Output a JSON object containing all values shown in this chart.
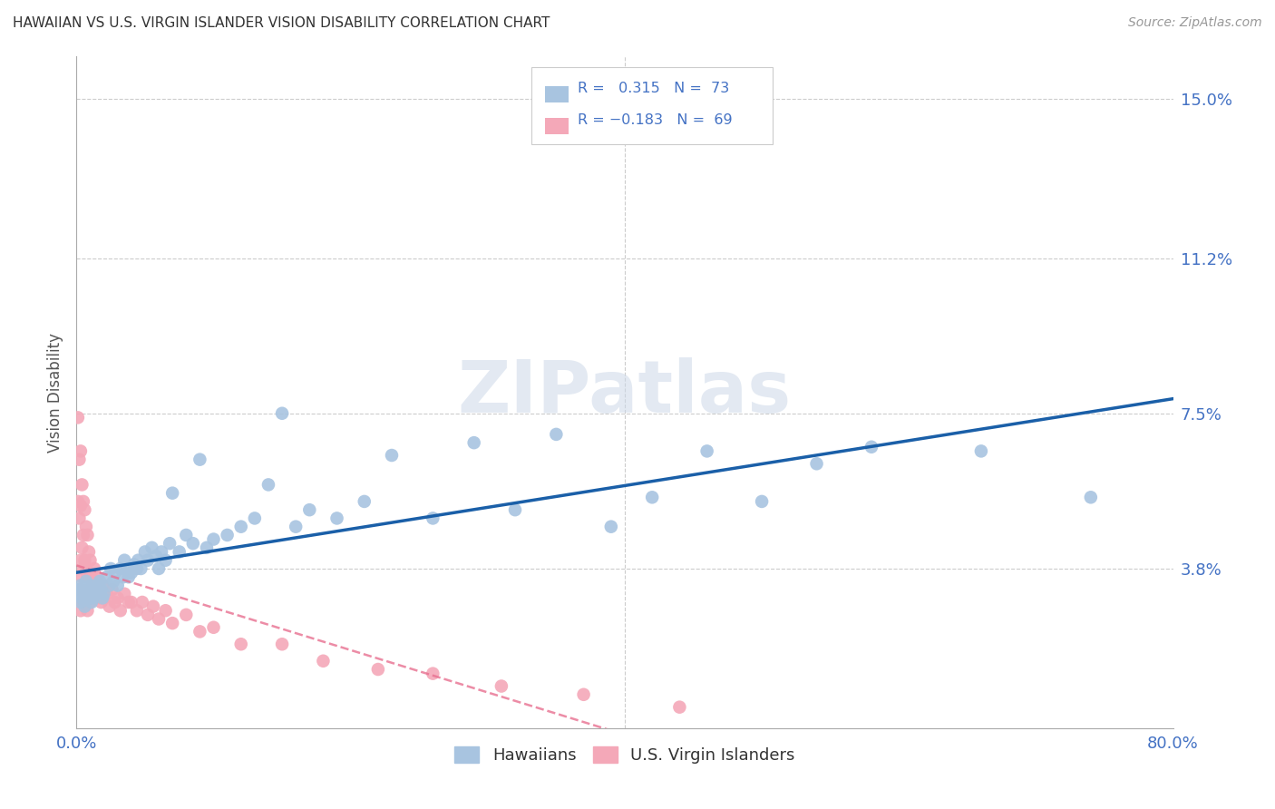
{
  "title": "HAWAIIAN VS U.S. VIRGIN ISLANDER VISION DISABILITY CORRELATION CHART",
  "source": "Source: ZipAtlas.com",
  "ylabel": "Vision Disability",
  "xlim": [
    0.0,
    0.8
  ],
  "ylim": [
    0.0,
    0.16
  ],
  "ytick_positions": [
    0.038,
    0.075,
    0.112,
    0.15
  ],
  "ytick_labels": [
    "3.8%",
    "7.5%",
    "11.2%",
    "15.0%"
  ],
  "xtick_positions": [
    0.0,
    0.1,
    0.2,
    0.3,
    0.4,
    0.5,
    0.6,
    0.7,
    0.8
  ],
  "xtick_labels": [
    "0.0%",
    "",
    "",
    "",
    "",
    "",
    "",
    "",
    "80.0%"
  ],
  "grid_color": "#cccccc",
  "background_color": "#ffffff",
  "hawaiian_color": "#a8c4e0",
  "usvi_color": "#f4a8b8",
  "hawaiian_line_color": "#1a5fa8",
  "usvi_line_color": "#e87090",
  "R_hawaiian": 0.315,
  "N_hawaiian": 73,
  "R_usvi": -0.183,
  "N_usvi": 69,
  "legend_labels": [
    "Hawaiians",
    "U.S. Virgin Islanders"
  ],
  "watermark": "ZIPatlas",
  "hawaiian_x": [
    0.001,
    0.002,
    0.003,
    0.003,
    0.004,
    0.005,
    0.006,
    0.007,
    0.008,
    0.009,
    0.01,
    0.011,
    0.012,
    0.013,
    0.015,
    0.016,
    0.017,
    0.018,
    0.019,
    0.02,
    0.022,
    0.024,
    0.025,
    0.027,
    0.028,
    0.03,
    0.032,
    0.034,
    0.035,
    0.037,
    0.038,
    0.04,
    0.042,
    0.044,
    0.045,
    0.047,
    0.05,
    0.052,
    0.055,
    0.058,
    0.06,
    0.062,
    0.065,
    0.068,
    0.07,
    0.075,
    0.08,
    0.085,
    0.09,
    0.095,
    0.1,
    0.11,
    0.12,
    0.13,
    0.14,
    0.15,
    0.16,
    0.17,
    0.19,
    0.21,
    0.23,
    0.26,
    0.29,
    0.32,
    0.35,
    0.39,
    0.42,
    0.46,
    0.5,
    0.54,
    0.58,
    0.66,
    0.74
  ],
  "hawaiian_y": [
    0.033,
    0.032,
    0.03,
    0.034,
    0.031,
    0.033,
    0.029,
    0.035,
    0.031,
    0.032,
    0.034,
    0.03,
    0.031,
    0.033,
    0.032,
    0.034,
    0.035,
    0.033,
    0.031,
    0.032,
    0.036,
    0.034,
    0.038,
    0.035,
    0.037,
    0.034,
    0.038,
    0.036,
    0.04,
    0.038,
    0.036,
    0.037,
    0.039,
    0.038,
    0.04,
    0.038,
    0.042,
    0.04,
    0.043,
    0.041,
    0.038,
    0.042,
    0.04,
    0.044,
    0.056,
    0.042,
    0.046,
    0.044,
    0.064,
    0.043,
    0.045,
    0.046,
    0.048,
    0.05,
    0.058,
    0.075,
    0.048,
    0.052,
    0.05,
    0.054,
    0.065,
    0.05,
    0.068,
    0.052,
    0.07,
    0.048,
    0.055,
    0.066,
    0.054,
    0.063,
    0.067,
    0.066,
    0.055
  ],
  "usvi_x": [
    0.001,
    0.001,
    0.001,
    0.002,
    0.002,
    0.002,
    0.003,
    0.003,
    0.003,
    0.003,
    0.003,
    0.004,
    0.004,
    0.004,
    0.004,
    0.005,
    0.005,
    0.005,
    0.005,
    0.006,
    0.006,
    0.006,
    0.007,
    0.007,
    0.007,
    0.008,
    0.008,
    0.008,
    0.009,
    0.009,
    0.01,
    0.01,
    0.011,
    0.012,
    0.013,
    0.014,
    0.015,
    0.016,
    0.017,
    0.018,
    0.019,
    0.02,
    0.022,
    0.024,
    0.026,
    0.028,
    0.03,
    0.032,
    0.035,
    0.038,
    0.04,
    0.044,
    0.048,
    0.052,
    0.056,
    0.06,
    0.065,
    0.07,
    0.08,
    0.09,
    0.1,
    0.12,
    0.15,
    0.18,
    0.22,
    0.26,
    0.31,
    0.37,
    0.44
  ],
  "usvi_y": [
    0.074,
    0.054,
    0.033,
    0.064,
    0.05,
    0.033,
    0.066,
    0.053,
    0.04,
    0.033,
    0.028,
    0.058,
    0.043,
    0.036,
    0.03,
    0.054,
    0.046,
    0.038,
    0.03,
    0.052,
    0.04,
    0.032,
    0.048,
    0.038,
    0.03,
    0.046,
    0.036,
    0.028,
    0.042,
    0.033,
    0.04,
    0.03,
    0.036,
    0.034,
    0.038,
    0.032,
    0.036,
    0.033,
    0.031,
    0.03,
    0.034,
    0.031,
    0.032,
    0.029,
    0.033,
    0.03,
    0.031,
    0.028,
    0.032,
    0.03,
    0.03,
    0.028,
    0.03,
    0.027,
    0.029,
    0.026,
    0.028,
    0.025,
    0.027,
    0.023,
    0.024,
    0.02,
    0.02,
    0.016,
    0.014,
    0.013,
    0.01,
    0.008,
    0.005
  ]
}
